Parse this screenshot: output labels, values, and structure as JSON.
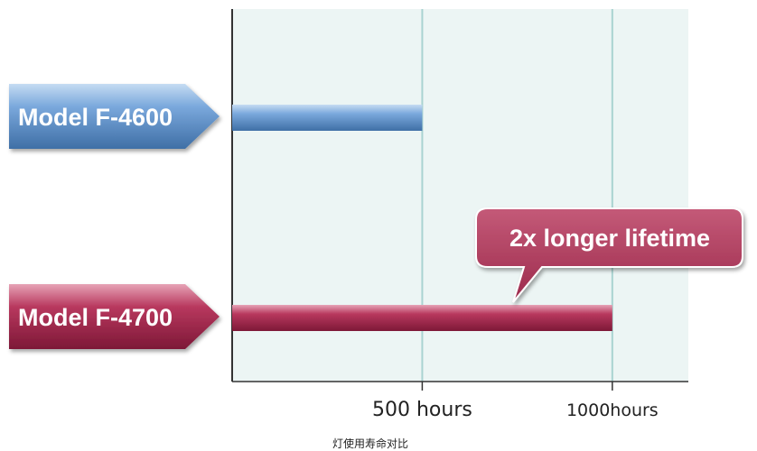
{
  "caption": "灯使用寿命对比",
  "chart_data": {
    "type": "bar",
    "orientation": "horizontal",
    "categories": [
      "Model F-4600",
      "Model F-4700"
    ],
    "values": [
      500,
      1000
    ],
    "xlim": [
      0,
      1200
    ],
    "ticks": [
      {
        "value": 500,
        "label": "500 hours"
      },
      {
        "value": 1000,
        "label": "1000hours"
      }
    ],
    "grid": true,
    "annotation": {
      "text": "2x longer lifetime",
      "target": "Model F-4700"
    },
    "colors": {
      "Model F-4600": "#6f9fd6",
      "Model F-4700": "#a8294f",
      "plot_bg": "#ecf5f4",
      "grid": "#a9d3d1"
    }
  }
}
